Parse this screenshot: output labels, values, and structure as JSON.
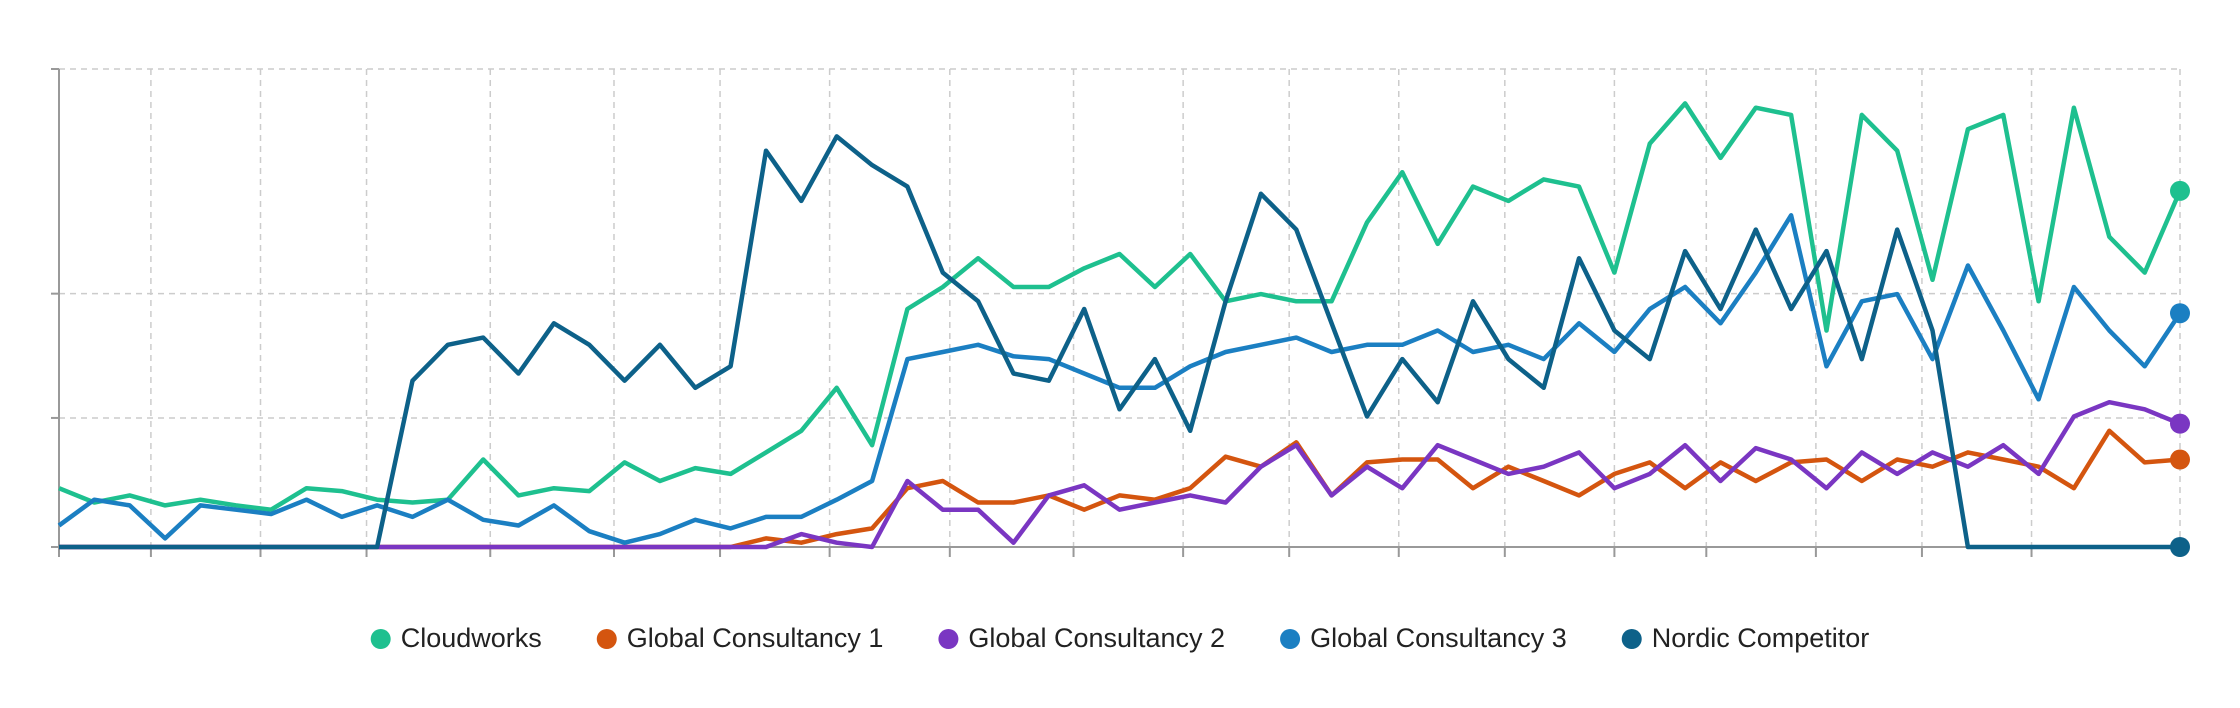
{
  "chart_data": {
    "type": "line",
    "x": [
      0,
      1,
      2,
      3,
      4,
      5,
      6,
      7,
      8,
      9,
      10,
      11,
      12,
      13,
      14,
      15,
      16,
      17,
      18,
      19,
      20,
      21,
      22,
      23,
      24,
      25,
      26,
      27,
      28,
      29,
      30,
      31,
      32,
      33,
      34,
      35,
      36,
      37,
      38,
      39,
      40,
      41,
      42,
      43,
      44,
      45,
      46,
      47,
      48,
      49,
      50,
      51,
      52,
      53,
      54,
      55,
      56,
      57,
      58,
      59,
      60
    ],
    "xlim": [
      0,
      60
    ],
    "xticks": [
      0,
      2.6,
      5.7,
      8.7,
      12.2,
      15.7,
      18.7,
      21.8,
      25.2,
      28.7,
      31.8,
      34.8,
      37.9,
      40.9,
      44.0,
      46.6,
      49.7,
      52.7,
      55.8,
      60
    ],
    "ylim": [
      0,
      100
    ],
    "yticks": [
      0,
      27,
      53,
      100
    ],
    "grid": true,
    "legend": "bottom",
    "series": [
      {
        "name": "Cloudworks",
        "color": "#1ec08f",
        "values": [
          12.3,
          9.3,
          10.8,
          8.7,
          9.9,
          8.7,
          7.8,
          12.3,
          11.7,
          9.9,
          9.3,
          9.9,
          18.3,
          10.8,
          12.3,
          11.7,
          17.7,
          13.8,
          16.5,
          15.3,
          19.8,
          24.3,
          33.3,
          21.3,
          49.8,
          54.4,
          60.4,
          54.4,
          54.4,
          58.3,
          61.3,
          54.4,
          61.3,
          51.4,
          52.9,
          51.4,
          51.4,
          67.9,
          78.4,
          63.4,
          75.4,
          72.4,
          76.9,
          75.4,
          57.4,
          84.4,
          92.8,
          81.4,
          91.9,
          90.4,
          45.3,
          90.4,
          82.9,
          55.9,
          87.4,
          90.4,
          51.4,
          91.9,
          64.9,
          57.4,
          74.5
        ]
      },
      {
        "name": "Global Consultancy 1",
        "color": "#d4550f",
        "values": [
          0,
          0,
          0,
          0,
          0,
          0,
          0,
          0,
          0,
          0,
          0,
          0,
          0,
          0,
          0,
          0,
          0,
          0,
          0,
          0,
          1.8,
          0.9,
          2.7,
          3.9,
          12.3,
          13.8,
          9.3,
          9.3,
          10.8,
          7.8,
          10.8,
          9.9,
          12.3,
          18.9,
          16.8,
          21.9,
          10.8,
          17.7,
          18.3,
          18.3,
          12.3,
          16.8,
          13.8,
          10.8,
          15.3,
          17.7,
          12.3,
          17.7,
          13.8,
          17.7,
          18.3,
          13.8,
          18.3,
          16.8,
          19.8,
          18.3,
          16.8,
          12.3,
          24.3,
          17.7,
          18.3
        ]
      },
      {
        "name": "Global Consultancy 2",
        "color": "#7a36c2",
        "values": [
          0,
          0,
          0,
          0,
          0,
          0,
          0,
          0,
          0,
          0,
          0,
          0,
          0,
          0,
          0,
          0,
          0,
          0,
          0,
          0,
          0,
          2.7,
          0.9,
          0,
          13.8,
          7.8,
          7.8,
          0.9,
          10.8,
          12.9,
          7.8,
          9.3,
          10.8,
          9.3,
          16.8,
          21.3,
          10.8,
          16.8,
          12.3,
          21.3,
          18.3,
          15.3,
          16.8,
          19.8,
          12.3,
          15.3,
          21.3,
          13.8,
          20.7,
          18.3,
          12.3,
          19.8,
          15.3,
          19.8,
          16.8,
          21.3,
          15.3,
          27.3,
          30.3,
          28.8,
          25.8
        ]
      },
      {
        "name": "Global Consultancy 3",
        "color": "#1b7fc2",
        "values": [
          4.5,
          9.9,
          8.7,
          1.8,
          8.7,
          7.8,
          6.9,
          9.9,
          6.3,
          8.7,
          6.3,
          9.9,
          5.7,
          4.5,
          8.7,
          3.3,
          0.9,
          2.7,
          5.7,
          3.9,
          6.3,
          6.3,
          9.9,
          13.8,
          39.3,
          40.8,
          42.3,
          39.9,
          39.3,
          36.3,
          33.3,
          33.3,
          37.8,
          40.8,
          42.3,
          43.8,
          40.8,
          42.3,
          42.3,
          45.3,
          40.8,
          42.3,
          39.3,
          46.8,
          40.8,
          49.8,
          54.4,
          46.8,
          57.4,
          69.4,
          37.8,
          51.4,
          52.9,
          39.3,
          58.9,
          45.3,
          30.9,
          54.4,
          45.3,
          37.8,
          48.9
        ]
      },
      {
        "name": "Nordic Competitor",
        "color": "#0d6189",
        "values": [
          0,
          0,
          0,
          0,
          0,
          0,
          0,
          0,
          0,
          0,
          34.8,
          42.3,
          43.8,
          36.3,
          46.8,
          42.3,
          34.8,
          42.3,
          33.3,
          37.8,
          82.9,
          72.4,
          85.9,
          79.9,
          75.4,
          57.4,
          51.4,
          36.3,
          34.8,
          49.8,
          28.8,
          39.3,
          24.3,
          51.4,
          73.9,
          66.4,
          46.8,
          27.3,
          39.3,
          30.3,
          51.4,
          39.3,
          33.3,
          60.4,
          45.3,
          39.3,
          61.9,
          49.8,
          66.4,
          49.8,
          61.9,
          39.3,
          66.4,
          45.3,
          0,
          0,
          0,
          0,
          0,
          0,
          0
        ]
      }
    ]
  }
}
